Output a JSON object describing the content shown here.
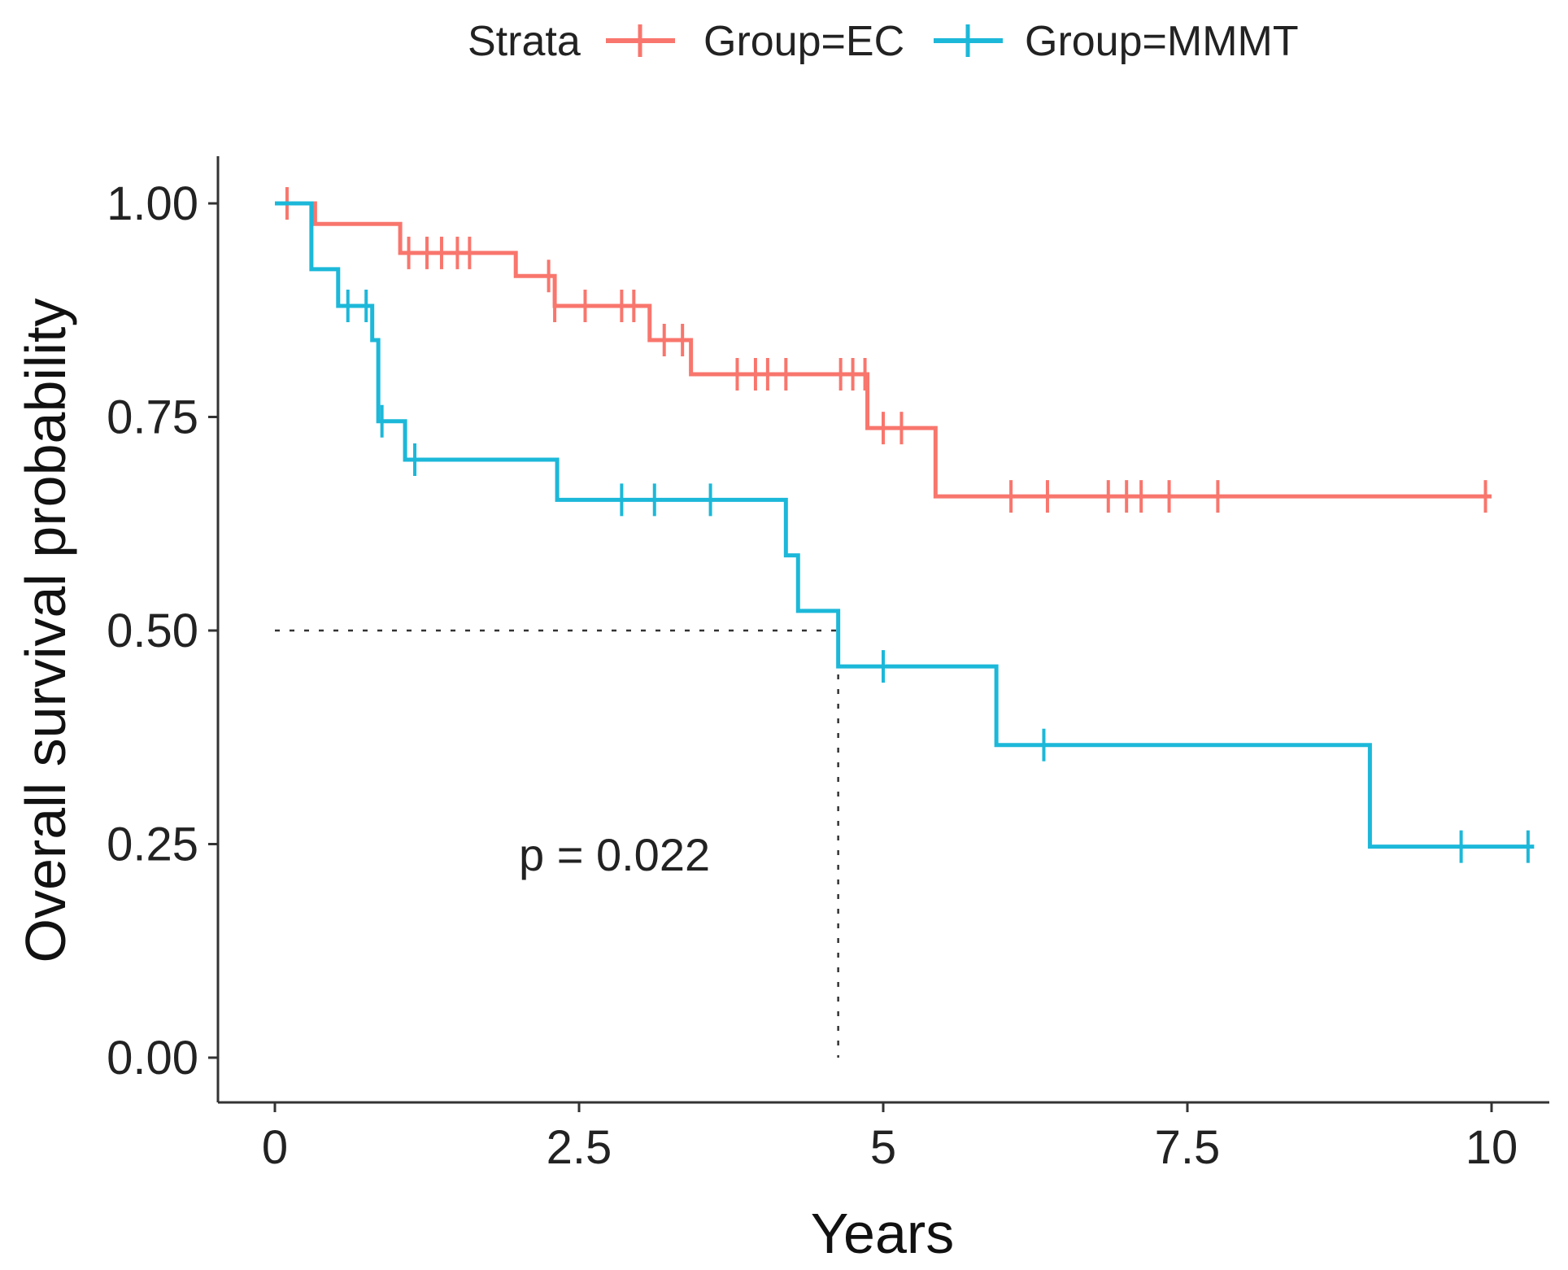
{
  "chart_data": {
    "type": "line",
    "subtype": "kaplan-meier",
    "title": "",
    "xlabel": "Years",
    "ylabel": "Overall survival probability",
    "xlim": [
      -0.2,
      10.4
    ],
    "ylim": [
      -0.05,
      1.05
    ],
    "x_ticks": [
      0,
      2.5,
      5,
      7.5,
      10
    ],
    "x_tick_labels": [
      "0",
      "2.5",
      "5",
      "7.5",
      "10"
    ],
    "y_ticks": [
      0,
      0.25,
      0.5,
      0.75,
      1.0
    ],
    "y_tick_labels": [
      "0.00",
      "0.25",
      "0.50",
      "0.75",
      "1.00"
    ],
    "legend": {
      "title": "Strata",
      "position": "top",
      "entries": [
        "Group=EC",
        "Group=MMMT"
      ]
    },
    "annotation": "p = 0.022",
    "median_line": {
      "x": 4.63,
      "y": 0.5
    },
    "series": [
      {
        "name": "Group=EC",
        "color": "#F8766D",
        "steps": [
          [
            0,
            1.0
          ],
          [
            0.33,
            0.976
          ],
          [
            1.03,
            0.942
          ],
          [
            1.98,
            0.915
          ],
          [
            2.3,
            0.88
          ],
          [
            3.08,
            0.84
          ],
          [
            3.42,
            0.8
          ],
          [
            4.87,
            0.737
          ],
          [
            5.43,
            0.657
          ],
          [
            10.0,
            0.657
          ]
        ],
        "censor_times": [
          0.1,
          1.1,
          1.25,
          1.37,
          1.5,
          1.6,
          2.25,
          2.3,
          2.55,
          2.85,
          2.95,
          3.2,
          3.35,
          3.8,
          3.95,
          4.05,
          4.2,
          4.65,
          4.75,
          4.85,
          5.0,
          5.15,
          6.05,
          6.35,
          6.85,
          7.0,
          7.12,
          7.35,
          7.75,
          9.95
        ]
      },
      {
        "name": "Group=MMMT",
        "color": "#1CB8D9",
        "steps": [
          [
            0,
            1.0
          ],
          [
            0.27,
            1.0
          ],
          [
            0.3,
            0.923
          ],
          [
            0.52,
            0.88
          ],
          [
            0.8,
            0.84
          ],
          [
            0.85,
            0.745
          ],
          [
            1.07,
            0.7
          ],
          [
            2.32,
            0.653
          ],
          [
            4.2,
            0.588
          ],
          [
            4.3,
            0.523
          ],
          [
            4.63,
            0.458
          ],
          [
            5.93,
            0.366
          ],
          [
            9.0,
            0.247
          ],
          [
            10.35,
            0.247
          ]
        ],
        "censor_times": [
          0.6,
          0.75,
          0.88,
          1.15,
          2.85,
          3.12,
          3.58,
          5.0,
          6.32,
          9.75,
          10.3
        ]
      }
    ]
  }
}
